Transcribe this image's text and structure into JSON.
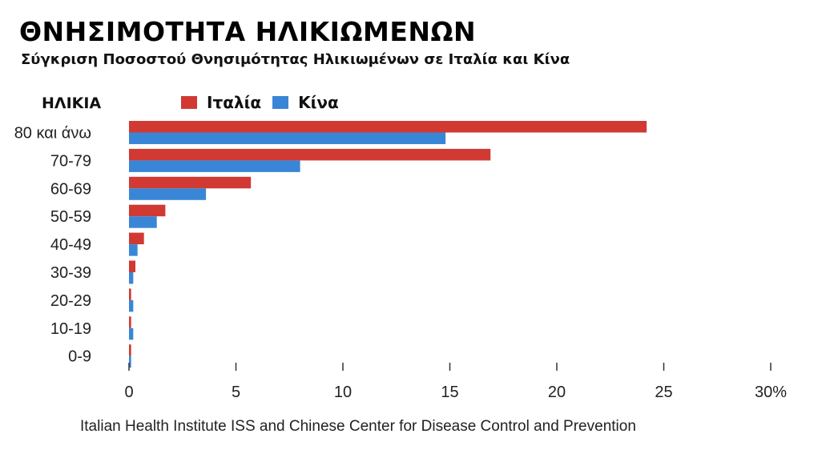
{
  "chart_data": {
    "type": "bar",
    "orientation": "horizontal",
    "title": "ΘΝΗΣΙΜΟΤΗΤΑ ΗΛΙΚΙΩΜΕΝΩΝ",
    "subtitle": "Σύγκριση Ποσοστού Θνησιμότητας Ηλικιωμένων σε Ιταλία και Κίνα",
    "ylabel": "ΗΛΙΚΙΑ",
    "xlabel": "",
    "categories": [
      "80 και άνω",
      "70-79",
      "60-69",
      "50-59",
      "40-49",
      "30-39",
      "20-29",
      "10-19",
      "0-9"
    ],
    "series": [
      {
        "name": "Ιταλία",
        "color": "#d03a33",
        "values": [
          24.2,
          16.9,
          5.7,
          1.7,
          0.7,
          0.3,
          0.1,
          0.1,
          0.1
        ]
      },
      {
        "name": "Κίνα",
        "color": "#3a86d6",
        "values": [
          14.8,
          8.0,
          3.6,
          1.3,
          0.4,
          0.2,
          0.2,
          0.2,
          0.1
        ]
      }
    ],
    "xlim": [
      0,
      30
    ],
    "xticks": [
      "0",
      "5",
      "10",
      "15",
      "20",
      "25",
      "30%"
    ],
    "legend": "top",
    "grid": false,
    "source": "Italian Health Institute ISS and Chinese Center for Disease Control and Prevention"
  }
}
